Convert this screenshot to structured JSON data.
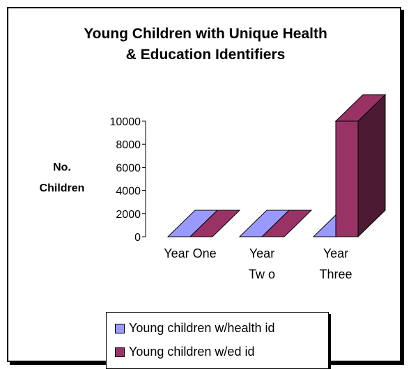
{
  "chart_data": {
    "type": "bar",
    "title_line1": "Young Children with Unique Health",
    "title_line2": "& Education Identifiers",
    "ylabel_line1": "No.",
    "ylabel_line2": "Children",
    "categories": [
      {
        "line1": "Year One",
        "line2": ""
      },
      {
        "line1": "Year",
        "line2": "Tw o"
      },
      {
        "line1": "Year",
        "line2": "Three"
      }
    ],
    "yticks": [
      "0",
      "2000",
      "4000",
      "6000",
      "8000",
      "10000"
    ],
    "ylim": [
      0,
      10000
    ],
    "series": [
      {
        "name": "Young children w/health id",
        "values": [
          0,
          0,
          0
        ],
        "color": "#9999ff",
        "colorDark": "#6666cc"
      },
      {
        "name": "Young children w/ed id",
        "values": [
          0,
          0,
          10000
        ],
        "color": "#993366",
        "colorDark": "#4d1a33"
      }
    ],
    "legend_position": "bottom"
  }
}
